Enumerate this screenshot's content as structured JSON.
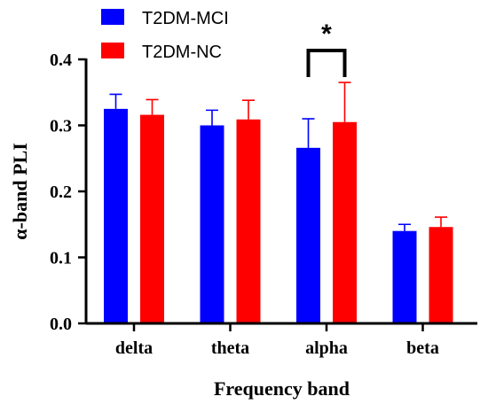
{
  "chart_data": {
    "type": "bar",
    "title": "",
    "xlabel": "Frequency band",
    "ylabel": "α-band PLI",
    "categories": [
      "delta",
      "theta",
      "alpha",
      "beta"
    ],
    "ylim": [
      0.0,
      0.4
    ],
    "yticks": [
      0.0,
      0.1,
      0.2,
      0.3,
      0.4
    ],
    "ytick_labels": [
      "0.0",
      "0.1",
      "0.2",
      "0.3",
      "0.4"
    ],
    "grid": false,
    "legend_position": "top-left",
    "series": [
      {
        "name": "T2DM-MCI",
        "color": "#0000ff",
        "values": [
          0.325,
          0.3,
          0.266,
          0.14
        ],
        "errors": [
          0.022,
          0.023,
          0.044,
          0.01
        ]
      },
      {
        "name": "T2DM-NC",
        "color": "#ff0000",
        "values": [
          0.316,
          0.309,
          0.305,
          0.146
        ],
        "errors": [
          0.023,
          0.029,
          0.06,
          0.015
        ]
      }
    ],
    "annotations": [
      {
        "text": "*",
        "category": "alpha",
        "type": "significance",
        "between": [
          "T2DM-MCI",
          "T2DM-NC"
        ]
      }
    ]
  }
}
